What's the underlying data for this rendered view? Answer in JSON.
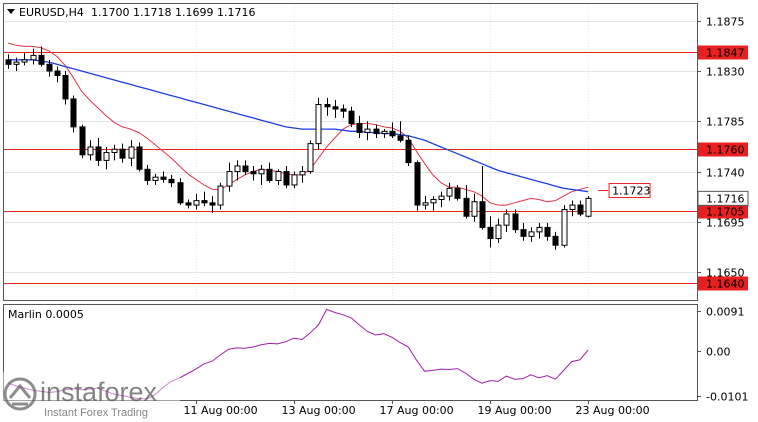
{
  "header": {
    "symbol": "EURUSD,H4",
    "ohlc": "1.1700 1.1718 1.1699 1.1716"
  },
  "indicator": {
    "label": "Marlin 0.0005",
    "ticks": [
      "0.0091",
      "0.00",
      "-0.0101"
    ]
  },
  "watermark": {
    "brand": "instaforex",
    "tagline": "Instant Forex Trading"
  },
  "colors": {
    "candle": "#000000",
    "level_line": "#e8201f",
    "ma_fast": "#e0344a",
    "ma_slow": "#1c3fe0",
    "oscillator": "#a01fa8",
    "grid": "#cfd3d7",
    "panel_bg": "#ececec",
    "price_tag_bg": "#e8201f"
  },
  "chart_data": [
    {
      "type": "candlestick",
      "title": "EURUSD,H4",
      "y_ticks": [
        "1.1875",
        "1.1830",
        "1.1785",
        "1.1740",
        "1.1695",
        "1.1650"
      ],
      "x_tick_labels": [
        "11 Aug 00:00",
        "13 Aug 00:00",
        "17 Aug 00:00",
        "19 Aug 00:00",
        "23 Aug 00:00"
      ],
      "ylim": [
        1.1625,
        1.189
      ],
      "levels": [
        {
          "value": 1.1847,
          "label": "1.1847"
        },
        {
          "value": 1.176,
          "label": "1.1760"
        },
        {
          "value": 1.1705,
          "label": "1.1705"
        },
        {
          "value": 1.164,
          "label": "1.1640"
        }
      ],
      "annotations": [
        {
          "value": 1.1723,
          "label": "1.1723"
        }
      ],
      "current_price": {
        "value": 1.1716,
        "label": "1.1716"
      },
      "candles": [
        [
          1.184,
          1.1845,
          1.1832,
          1.1836
        ],
        [
          1.1836,
          1.1842,
          1.183,
          1.1838
        ],
        [
          1.1838,
          1.1846,
          1.1835,
          1.184
        ],
        [
          1.184,
          1.185,
          1.1836,
          1.1844
        ],
        [
          1.1844,
          1.1852,
          1.1834,
          1.1836
        ],
        [
          1.1836,
          1.184,
          1.1825,
          1.183
        ],
        [
          1.183,
          1.1834,
          1.182,
          1.1826
        ],
        [
          1.1826,
          1.183,
          1.18,
          1.1805
        ],
        [
          1.1805,
          1.1808,
          1.1775,
          1.178
        ],
        [
          1.178,
          1.1782,
          1.1752,
          1.1755
        ],
        [
          1.1755,
          1.1768,
          1.175,
          1.1762
        ],
        [
          1.1762,
          1.177,
          1.1745,
          1.175
        ],
        [
          1.175,
          1.1762,
          1.1742,
          1.1757
        ],
        [
          1.1757,
          1.1764,
          1.175,
          1.176
        ],
        [
          1.176,
          1.1765,
          1.1748,
          1.1752
        ],
        [
          1.1752,
          1.1768,
          1.1745,
          1.1762
        ],
        [
          1.1762,
          1.1766,
          1.174,
          1.1742
        ],
        [
          1.1742,
          1.1746,
          1.1728,
          1.1732
        ],
        [
          1.1732,
          1.1738,
          1.1728,
          1.1735
        ],
        [
          1.1735,
          1.174,
          1.173,
          1.1733
        ],
        [
          1.1733,
          1.1737,
          1.1726,
          1.173
        ],
        [
          1.173,
          1.1734,
          1.171,
          1.1712
        ],
        [
          1.1712,
          1.1715,
          1.1707,
          1.171
        ],
        [
          1.171,
          1.172,
          1.1706,
          1.1714
        ],
        [
          1.1714,
          1.1722,
          1.1709,
          1.1712
        ],
        [
          1.1712,
          1.1718,
          1.1703,
          1.171
        ],
        [
          1.171,
          1.173,
          1.1706,
          1.1727
        ],
        [
          1.1727,
          1.1748,
          1.1722,
          1.174
        ],
        [
          1.174,
          1.175,
          1.1732,
          1.1745
        ],
        [
          1.1745,
          1.175,
          1.1737,
          1.174
        ],
        [
          1.174,
          1.1745,
          1.1732,
          1.1738
        ],
        [
          1.1738,
          1.1746,
          1.1728,
          1.1742
        ],
        [
          1.1742,
          1.1748,
          1.173,
          1.1732
        ],
        [
          1.1732,
          1.1742,
          1.1728,
          1.174
        ],
        [
          1.174,
          1.1745,
          1.1725,
          1.1728
        ],
        [
          1.1728,
          1.174,
          1.1725,
          1.1737
        ],
        [
          1.1737,
          1.1745,
          1.173,
          1.174
        ],
        [
          1.174,
          1.1768,
          1.1738,
          1.1765
        ],
        [
          1.1765,
          1.1806,
          1.176,
          1.18
        ],
        [
          1.18,
          1.1806,
          1.179,
          1.1798
        ],
        [
          1.1798,
          1.1804,
          1.1788,
          1.1796
        ],
        [
          1.1796,
          1.18,
          1.1788,
          1.1794
        ],
        [
          1.1794,
          1.1798,
          1.178,
          1.1783
        ],
        [
          1.1783,
          1.179,
          1.177,
          1.1775
        ],
        [
          1.1775,
          1.1785,
          1.1768,
          1.1778
        ],
        [
          1.1778,
          1.1782,
          1.177,
          1.1774
        ],
        [
          1.1774,
          1.1778,
          1.177,
          1.1776
        ],
        [
          1.1776,
          1.1784,
          1.177,
          1.1772
        ],
        [
          1.1772,
          1.1785,
          1.1766,
          1.1768
        ],
        [
          1.1768,
          1.1772,
          1.1745,
          1.1748
        ],
        [
          1.1748,
          1.175,
          1.1705,
          1.171
        ],
        [
          1.171,
          1.1718,
          1.1706,
          1.1712
        ],
        [
          1.1712,
          1.1718,
          1.1705,
          1.1715
        ],
        [
          1.1715,
          1.1722,
          1.1708,
          1.1718
        ],
        [
          1.1718,
          1.173,
          1.1714,
          1.1725
        ],
        [
          1.1725,
          1.1728,
          1.1714,
          1.1716
        ],
        [
          1.1716,
          1.1728,
          1.1698,
          1.17
        ],
        [
          1.17,
          1.172,
          1.1695,
          1.1713
        ],
        [
          1.1713,
          1.1745,
          1.1688,
          1.169
        ],
        [
          1.169,
          1.17,
          1.1672,
          1.168
        ],
        [
          1.168,
          1.1698,
          1.1676,
          1.1692
        ],
        [
          1.1692,
          1.1706,
          1.1686,
          1.1702
        ],
        [
          1.1702,
          1.1706,
          1.1685,
          1.1688
        ],
        [
          1.1688,
          1.1694,
          1.1678,
          1.1682
        ],
        [
          1.1682,
          1.169,
          1.1677,
          1.1686
        ],
        [
          1.1686,
          1.1694,
          1.168,
          1.169
        ],
        [
          1.169,
          1.1694,
          1.1678,
          1.1682
        ],
        [
          1.1682,
          1.1686,
          1.167,
          1.1674
        ],
        [
          1.1674,
          1.171,
          1.1672,
          1.1706
        ],
        [
          1.1706,
          1.1714,
          1.17,
          1.171
        ],
        [
          1.171,
          1.1714,
          1.17,
          1.1702
        ],
        [
          1.17,
          1.1718,
          1.1699,
          1.1716
        ]
      ],
      "series": [
        {
          "values": [
            1.1855,
            1.1853,
            1.1852,
            1.1852,
            1.1851,
            1.1848,
            1.1843,
            1.1835,
            1.1824,
            1.1812,
            1.1804,
            1.1797,
            1.179,
            1.1784,
            1.178,
            1.1778,
            1.1775,
            1.177,
            1.1764,
            1.1758,
            1.1752,
            1.1745,
            1.1738,
            1.1733,
            1.1728,
            1.1724,
            1.1724,
            1.1728,
            1.1733,
            1.1737,
            1.174,
            1.1742,
            1.1741,
            1.174,
            1.1738,
            1.1737,
            1.1737,
            1.1742,
            1.1752,
            1.1762,
            1.177,
            1.1778,
            1.1782,
            1.1783,
            1.1783,
            1.1782,
            1.178,
            1.1779,
            1.1776,
            1.177,
            1.1758,
            1.1747,
            1.1737,
            1.173,
            1.1726,
            1.1726,
            1.1724,
            1.1722,
            1.1718,
            1.1712,
            1.171,
            1.171,
            1.1712,
            1.1714,
            1.1716,
            1.1715,
            1.1713,
            1.1714,
            1.1718,
            1.1722,
            1.1724,
            1.1726
          ]
        },
        {
          "values": [
            1.184,
            1.184,
            1.184,
            1.184,
            1.1839,
            1.1838,
            1.1836,
            1.1834,
            1.1832,
            1.183,
            1.1828,
            1.1826,
            1.1824,
            1.1822,
            1.182,
            1.1818,
            1.1816,
            1.1814,
            1.1812,
            1.181,
            1.1808,
            1.1806,
            1.1804,
            1.1802,
            1.18,
            1.1798,
            1.1796,
            1.1794,
            1.1792,
            1.179,
            1.1788,
            1.1786,
            1.1784,
            1.1782,
            1.178,
            1.1779,
            1.1778,
            1.1778,
            1.1778,
            1.1778,
            1.1778,
            1.1777,
            1.1776,
            1.1776,
            1.1775,
            1.1775,
            1.1774,
            1.1774,
            1.1773,
            1.1772,
            1.177,
            1.1768,
            1.1765,
            1.1762,
            1.1759,
            1.1756,
            1.1753,
            1.175,
            1.1747,
            1.1744,
            1.1741,
            1.1739,
            1.1737,
            1.1735,
            1.1733,
            1.1731,
            1.1729,
            1.1727,
            1.1725,
            1.1724,
            1.1723,
            1.1722
          ]
        }
      ]
    },
    {
      "type": "line",
      "title": "Marlin 0.0005",
      "ylim": [
        -0.011,
        0.0105
      ],
      "y_ticks": [
        0.0091,
        0.0,
        -0.0101
      ],
      "series": [
        {
          "values": [
            -0.0072,
            -0.0078,
            -0.0083,
            -0.0088,
            -0.009,
            -0.0093,
            -0.0091,
            -0.0087,
            -0.0084,
            -0.0087,
            -0.0085,
            -0.0083,
            -0.009,
            -0.0097,
            -0.01,
            -0.0104,
            -0.0107,
            -0.0107,
            -0.0098,
            -0.0081,
            -0.0068,
            -0.006,
            -0.005,
            -0.004,
            -0.0028,
            -0.0022,
            -0.0008,
            0.0005,
            0.0008,
            0.0007,
            0.001,
            0.0015,
            0.0018,
            0.0017,
            0.0022,
            0.003,
            0.0027,
            0.0042,
            0.006,
            0.0095,
            0.0088,
            0.0083,
            0.0076,
            0.006,
            0.0045,
            0.0037,
            0.004,
            0.0032,
            0.002,
            0.001,
            -0.002,
            -0.0045,
            -0.0043,
            -0.004,
            -0.0041,
            -0.0039,
            -0.0049,
            -0.0063,
            -0.0072,
            -0.0066,
            -0.0068,
            -0.0056,
            -0.0063,
            -0.0062,
            -0.0053,
            -0.006,
            -0.0055,
            -0.0063,
            -0.0043,
            -0.0023,
            -0.0019,
            0.0003
          ]
        }
      ]
    }
  ]
}
